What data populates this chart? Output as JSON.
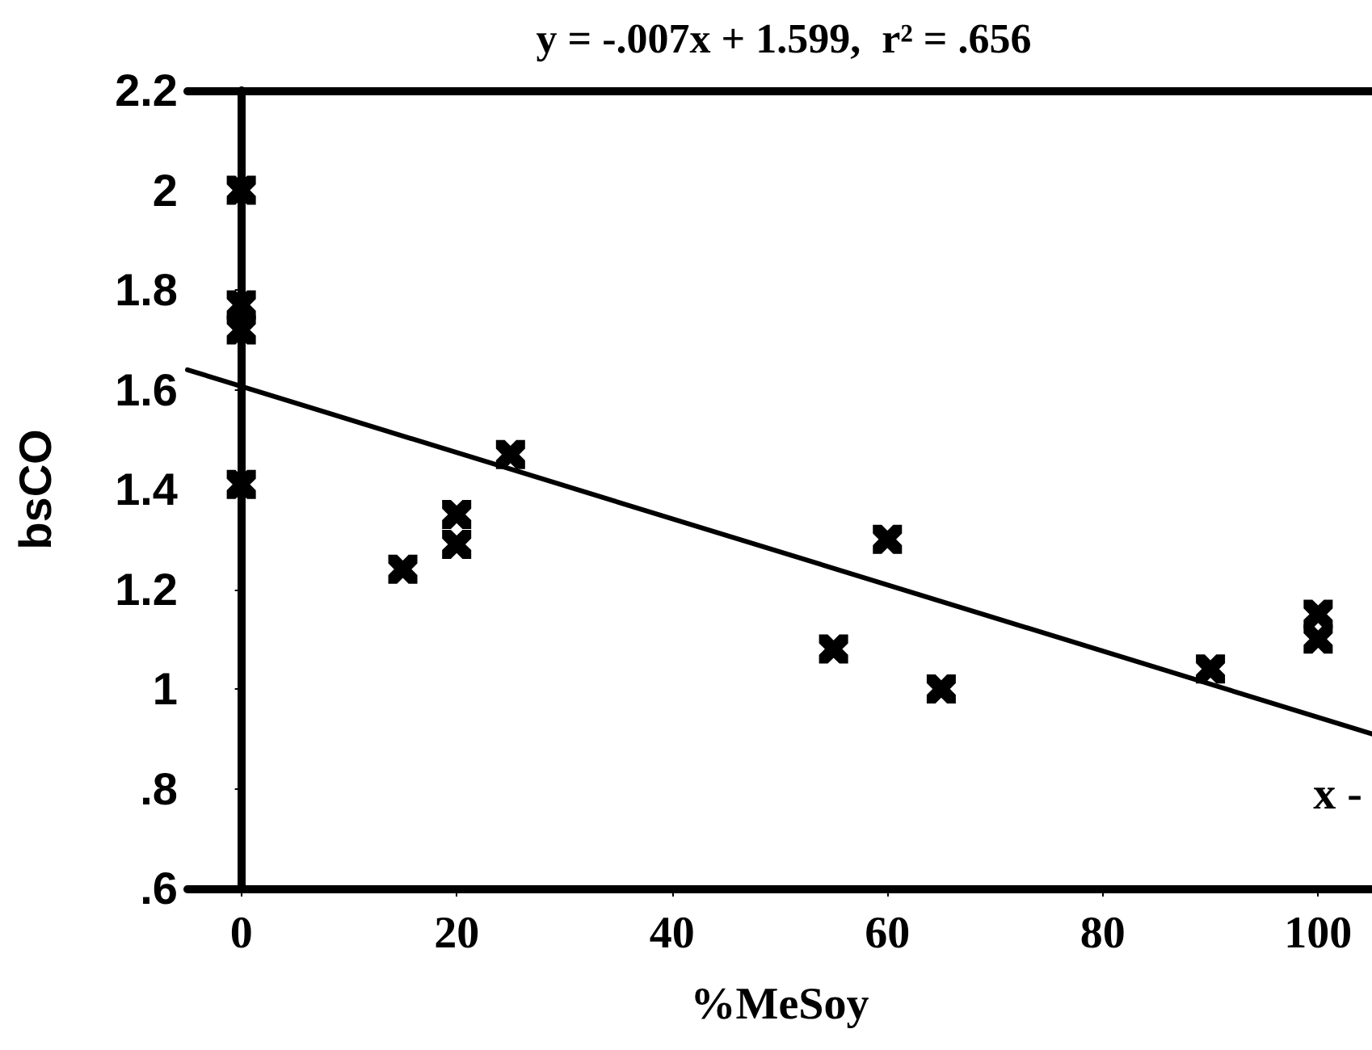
{
  "chart_data": {
    "type": "scatter",
    "title": "y = -.007x + 1.599,  r² = .656",
    "xlabel": "%MeSoy",
    "ylabel": "bsCO",
    "x": [
      0,
      0,
      0,
      0,
      15,
      20,
      20,
      25,
      55,
      60,
      65,
      90,
      100,
      100
    ],
    "series": [
      {
        "color": "#000000",
        "values": [
          2.0,
          1.77,
          1.72,
          1.41,
          1.24,
          1.35,
          1.29,
          1.47,
          1.08,
          1.3,
          1.0,
          1.04,
          1.15,
          1.1
        ]
      },
      {
        "type": "line",
        "color": "#000000",
        "x": [
          -5,
          105
        ],
        "values": [
          1.64,
          0.91
        ],
        "marker": "none",
        "line_style": "solid"
      }
    ],
    "marker": "cross",
    "annotations": [
      "x -"
    ],
    "xlim": [
      -5,
      105
    ],
    "xticks": [
      0,
      20,
      40,
      60,
      80,
      100
    ],
    "ylim": [
      0.6,
      2.2
    ],
    "yticks": [
      {
        "value": 0.6,
        "label": ".6"
      },
      {
        "value": 0.8,
        "label": ".8"
      },
      1,
      1.2,
      1.4,
      1.6,
      1.8,
      2,
      2.2
    ],
    "grid": false
  }
}
